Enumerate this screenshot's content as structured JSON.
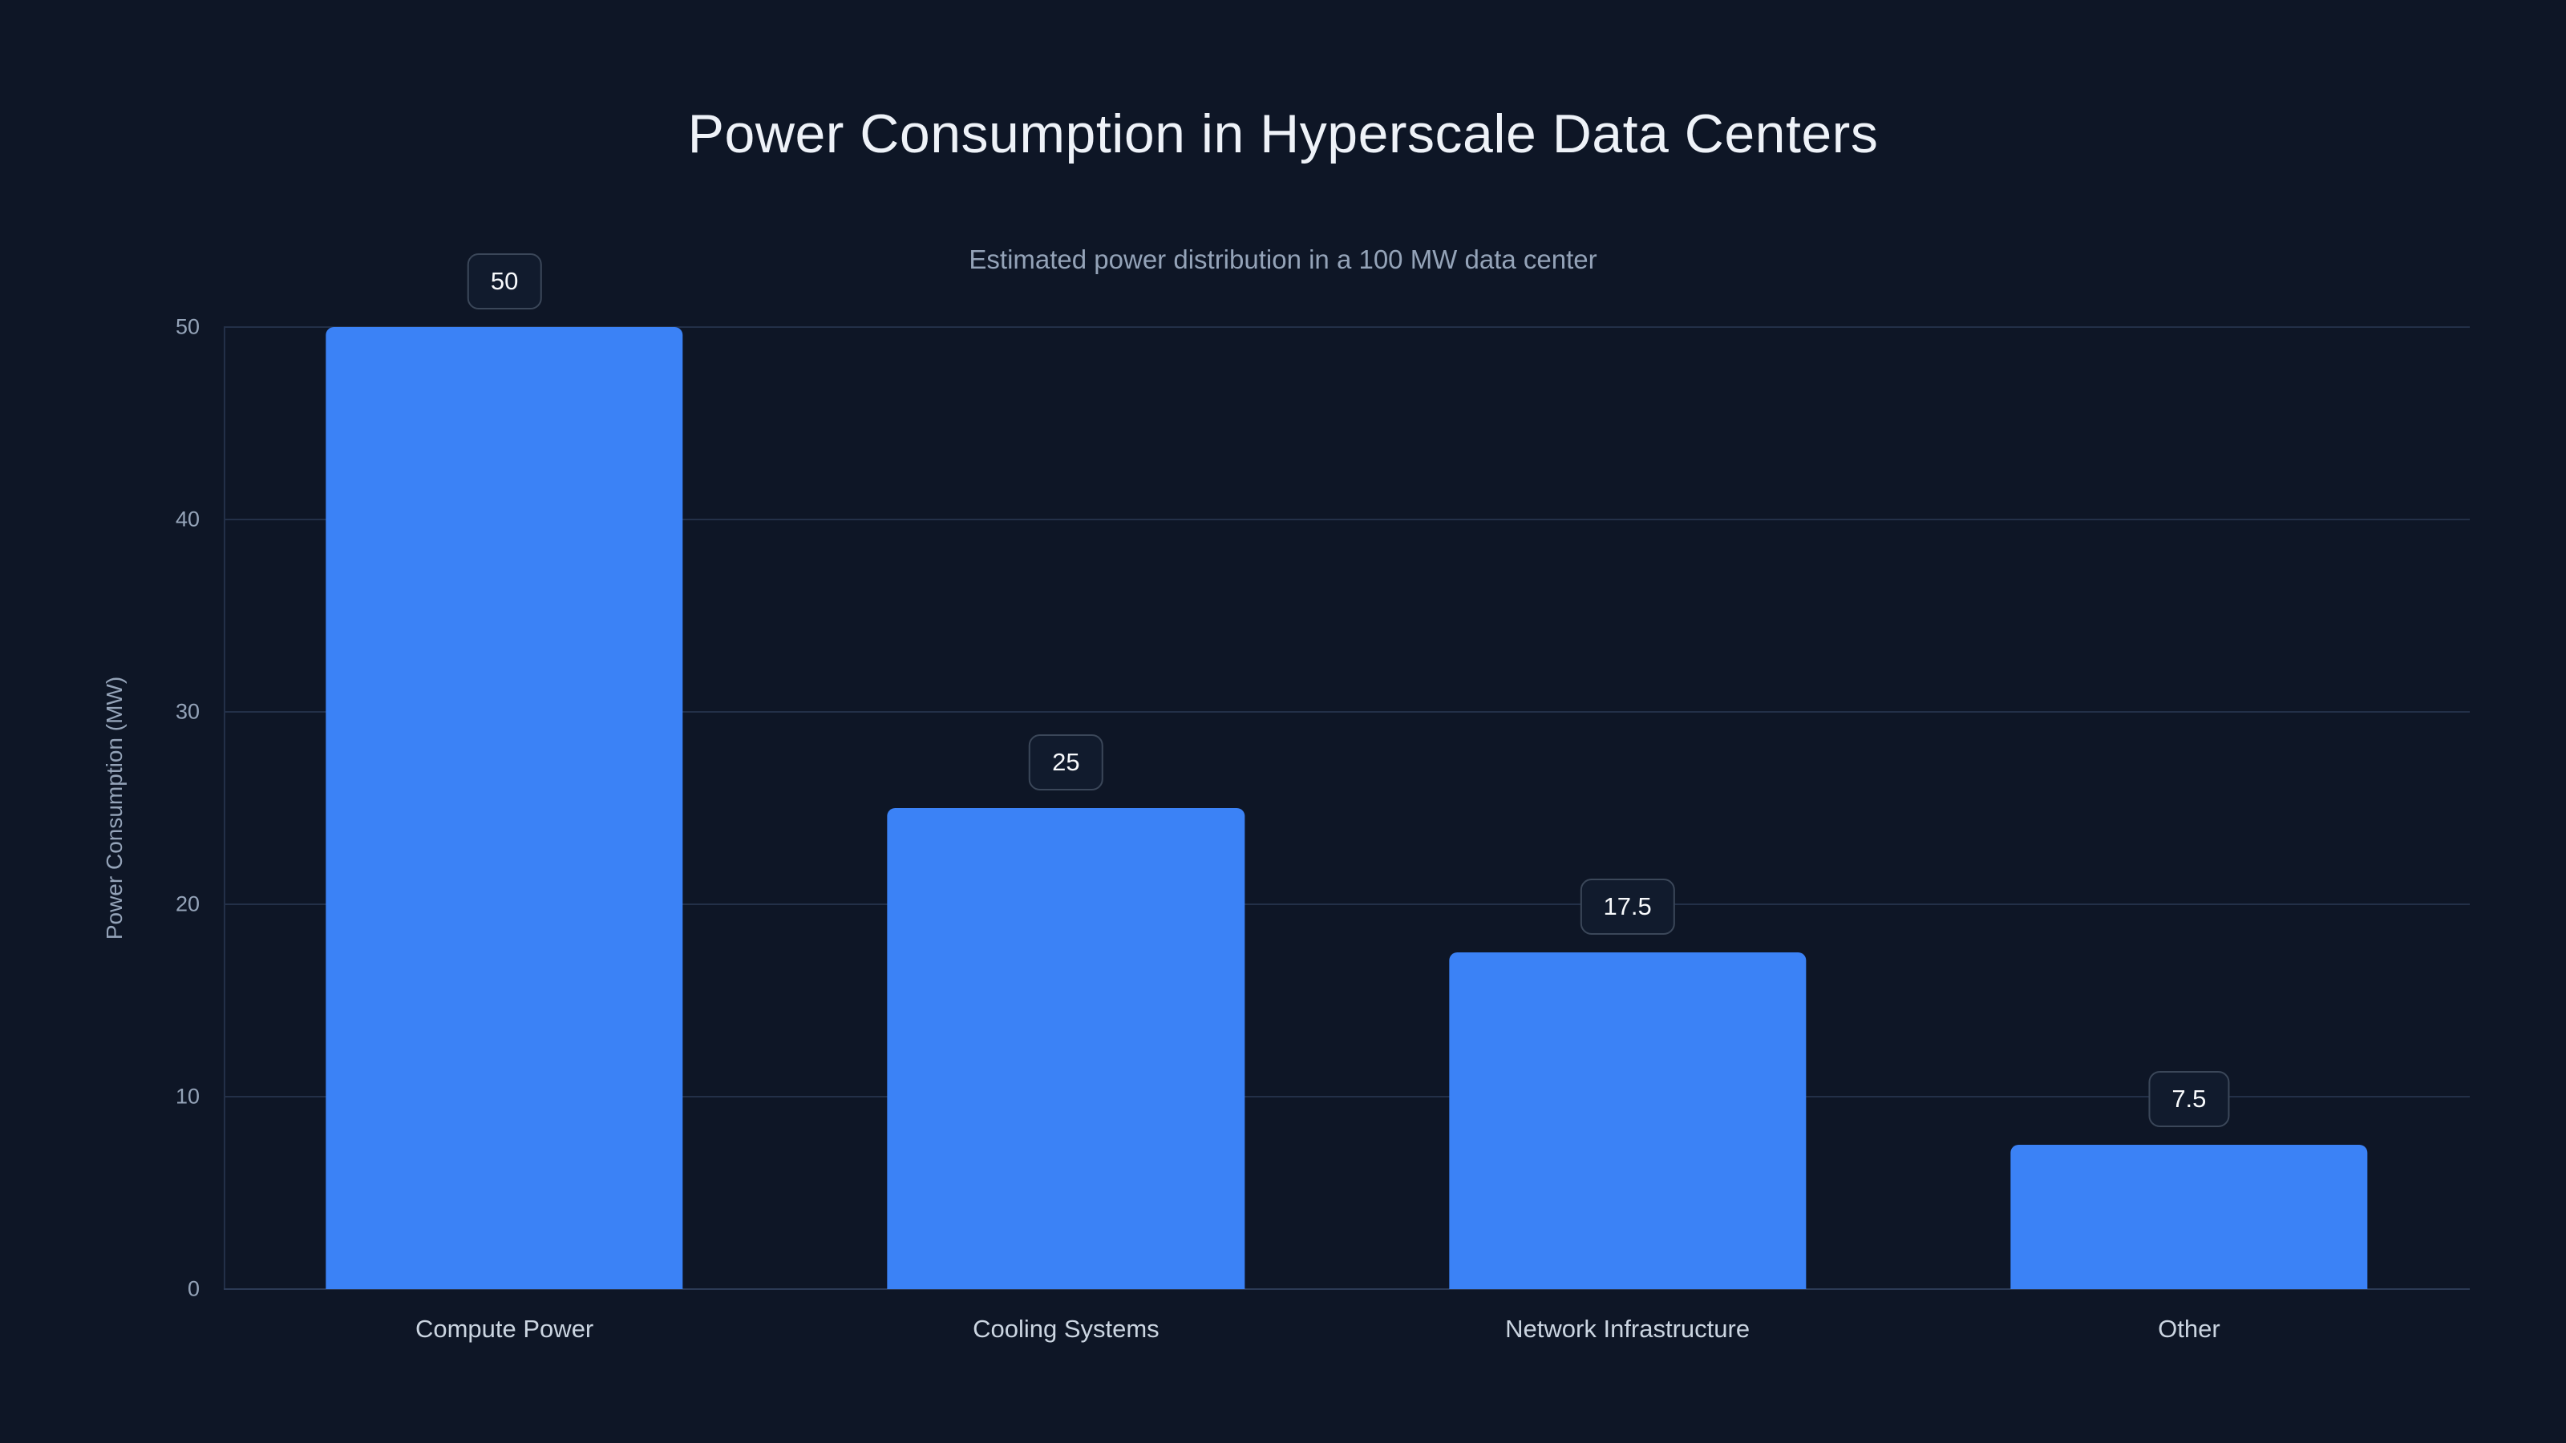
{
  "page": {
    "background": "#0e1626"
  },
  "chart_data": {
    "type": "bar",
    "title": "Power Consumption in Hyperscale Data Centers",
    "subtitle": "Estimated power distribution in a 100 MW data center",
    "categories": [
      "Compute Power",
      "Cooling Systems",
      "Network Infrastructure",
      "Other"
    ],
    "values": [
      50,
      25,
      17.5,
      7.5
    ],
    "value_labels": [
      "50",
      "25",
      "17.5",
      "7.5"
    ],
    "xlabel": "",
    "ylabel": "Power Consumption (MW)",
    "ylim": [
      0,
      50
    ],
    "yticks": [
      0,
      10,
      20,
      30,
      40,
      50
    ],
    "grid": true,
    "legend": "none",
    "colors": {
      "background": "#0e1626",
      "bar": "#3b82f6",
      "grid": "#233048",
      "axis": "#2c3a55",
      "title": "#eef2f8",
      "subtitle": "#94a3b8",
      "tick": "#94a3b8",
      "category": "#cbd5e1",
      "badge_bg": "#111b2d",
      "badge_border": "#3b4759",
      "badge_text": "#f8fafc"
    }
  }
}
